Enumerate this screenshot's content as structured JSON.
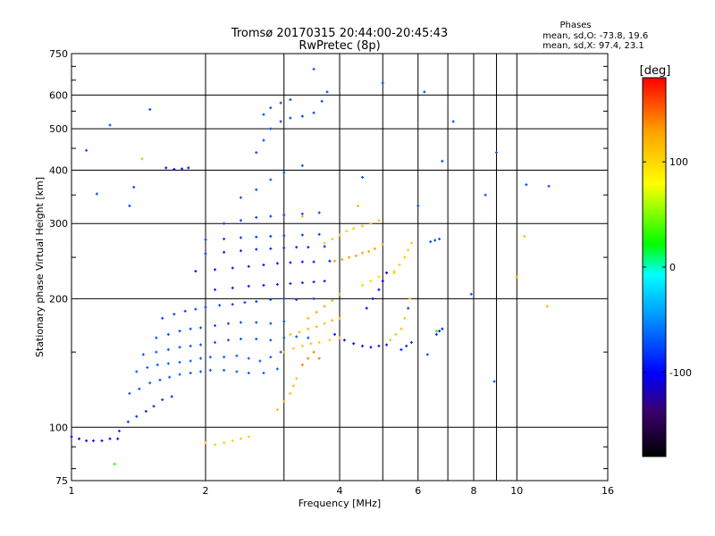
{
  "chart_data": {
    "type": "scatter",
    "title": "Tromsø 20170315 20:44:00-20:45:43",
    "subtitle": "RwPretec (8p)",
    "xlabel": "Frequency [MHz]",
    "ylabel": "Stationary phase Virtual Height [km]",
    "x_scale": "log",
    "y_scale": "log",
    "xlim": [
      1,
      16
    ],
    "ylim": [
      75,
      750
    ],
    "x_ticks": [
      1,
      2,
      4,
      6,
      8,
      10,
      16
    ],
    "x_minor_ticks": [
      3,
      5,
      7,
      9
    ],
    "y_ticks": [
      75,
      100,
      200,
      300,
      400,
      500,
      600,
      750
    ],
    "grid": true,
    "phases_box": {
      "title": "Phases",
      "line_o": "mean, sd,O: -73.8, 19.6",
      "line_x": "mean, sd,X:  97.4, 23.1"
    },
    "colorbar": {
      "label": "[deg]",
      "range": [
        -180,
        180
      ],
      "ticks": [
        100,
        0,
        -100
      ],
      "colors": [
        "#000000",
        "#3a006e",
        "#0000ff",
        "#00a0ff",
        "#00ffff",
        "#00ff00",
        "#ffff00",
        "#ffa000",
        "#ff0000"
      ]
    },
    "traces": [
      {
        "name": "",
        "phase": -105,
        "points": [
          [
            1.0,
            95
          ],
          [
            1.04,
            94
          ],
          [
            1.08,
            93
          ],
          [
            1.12,
            93
          ],
          [
            1.17,
            93
          ],
          [
            1.22,
            94
          ],
          [
            1.27,
            94
          ]
        ]
      },
      {
        "name": "",
        "phase": -85,
        "points": [
          [
            1.28,
            98
          ],
          [
            1.34,
            103
          ],
          [
            1.4,
            106
          ],
          [
            1.47,
            109
          ],
          [
            1.53,
            112
          ],
          [
            1.6,
            116
          ],
          [
            1.68,
            118
          ]
        ]
      },
      {
        "name": "",
        "phase": -70,
        "points": [
          [
            1.35,
            120
          ],
          [
            1.42,
            123
          ],
          [
            1.5,
            127
          ],
          [
            1.58,
            129
          ],
          [
            1.66,
            131
          ],
          [
            1.75,
            133
          ],
          [
            1.85,
            134
          ],
          [
            1.95,
            135
          ],
          [
            2.05,
            136
          ],
          [
            2.2,
            136
          ],
          [
            2.35,
            135
          ],
          [
            2.5,
            134
          ],
          [
            2.7,
            134
          ],
          [
            2.9,
            137
          ]
        ]
      },
      {
        "name": "",
        "phase": -68,
        "points": [
          [
            1.4,
            135
          ],
          [
            1.48,
            138
          ],
          [
            1.56,
            140
          ],
          [
            1.65,
            141
          ],
          [
            1.75,
            142
          ],
          [
            1.85,
            143
          ],
          [
            1.95,
            145
          ],
          [
            2.05,
            146
          ],
          [
            2.2,
            146
          ],
          [
            2.35,
            147
          ],
          [
            2.5,
            145
          ],
          [
            2.65,
            143
          ],
          [
            2.8,
            146
          ],
          [
            2.95,
            150
          ]
        ]
      },
      {
        "name": "",
        "phase": -72,
        "points": [
          [
            1.45,
            148
          ],
          [
            1.55,
            150
          ],
          [
            1.65,
            152
          ],
          [
            1.75,
            154
          ],
          [
            1.85,
            155
          ],
          [
            1.95,
            156
          ],
          [
            2.1,
            158
          ],
          [
            2.25,
            160
          ],
          [
            2.4,
            161
          ],
          [
            2.6,
            161
          ],
          [
            2.8,
            160
          ],
          [
            3.0,
            162
          ],
          [
            3.2,
            163
          ],
          [
            3.4,
            162
          ]
        ]
      },
      {
        "name": "",
        "phase": -75,
        "points": [
          [
            1.55,
            162
          ],
          [
            1.65,
            165
          ],
          [
            1.75,
            168
          ],
          [
            1.85,
            170
          ],
          [
            1.95,
            171
          ],
          [
            2.1,
            173
          ],
          [
            2.25,
            175
          ],
          [
            2.4,
            176
          ],
          [
            2.6,
            176
          ],
          [
            2.8,
            175
          ],
          [
            3.0,
            177
          ]
        ]
      },
      {
        "name": "",
        "phase": -80,
        "points": [
          [
            1.6,
            180
          ],
          [
            1.7,
            184
          ],
          [
            1.8,
            187
          ],
          [
            1.9,
            189
          ],
          [
            2.0,
            191
          ],
          [
            2.15,
            193
          ],
          [
            2.3,
            194
          ],
          [
            2.45,
            196
          ],
          [
            2.6,
            197
          ],
          [
            2.8,
            199
          ],
          [
            3.0,
            200
          ],
          [
            3.2,
            199
          ],
          [
            3.5,
            200
          ]
        ]
      },
      {
        "name": "",
        "phase": -90,
        "points": [
          [
            2.1,
            210
          ],
          [
            2.3,
            212
          ],
          [
            2.5,
            214
          ],
          [
            2.7,
            215
          ],
          [
            2.9,
            216
          ],
          [
            3.1,
            217
          ],
          [
            3.3,
            218
          ],
          [
            3.5,
            219
          ],
          [
            3.7,
            220
          ]
        ]
      },
      {
        "name": "",
        "phase": -92,
        "points": [
          [
            1.9,
            232
          ],
          [
            2.1,
            234
          ],
          [
            2.3,
            236
          ],
          [
            2.5,
            238
          ],
          [
            2.7,
            240
          ],
          [
            2.9,
            242
          ],
          [
            3.1,
            243
          ],
          [
            3.3,
            244
          ],
          [
            3.5,
            244
          ],
          [
            3.8,
            245
          ]
        ]
      },
      {
        "name": "",
        "phase": -88,
        "points": [
          [
            2.0,
            255
          ],
          [
            2.2,
            257
          ],
          [
            2.4,
            259
          ],
          [
            2.6,
            261
          ],
          [
            2.8,
            262
          ],
          [
            3.0,
            263
          ],
          [
            3.2,
            264
          ],
          [
            3.4,
            264
          ],
          [
            3.7,
            265
          ]
        ]
      },
      {
        "name": "",
        "phase": -82,
        "points": [
          [
            2.0,
            275
          ],
          [
            2.2,
            276
          ],
          [
            2.4,
            278
          ],
          [
            2.6,
            279
          ],
          [
            2.8,
            280
          ],
          [
            3.0,
            281
          ],
          [
            3.3,
            282
          ],
          [
            3.6,
            283
          ]
        ]
      },
      {
        "name": "",
        "phase": -78,
        "points": [
          [
            2.2,
            300
          ],
          [
            2.4,
            305
          ],
          [
            2.6,
            310
          ],
          [
            2.8,
            312
          ],
          [
            3.0,
            314
          ],
          [
            3.3,
            316
          ],
          [
            3.6,
            318
          ]
        ]
      },
      {
        "name": "",
        "phase": -72,
        "points": [
          [
            2.4,
            345
          ],
          [
            2.6,
            360
          ],
          [
            2.8,
            380
          ],
          [
            3.0,
            395
          ],
          [
            3.3,
            410
          ]
        ]
      },
      {
        "name": "",
        "phase": -78,
        "points": [
          [
            2.6,
            440
          ],
          [
            2.7,
            470
          ],
          [
            2.8,
            500
          ],
          [
            2.95,
            520
          ],
          [
            3.1,
            530
          ],
          [
            3.3,
            535
          ],
          [
            3.5,
            545
          ],
          [
            3.65,
            580
          ],
          [
            3.75,
            610
          ]
        ]
      },
      {
        "name": "",
        "phase": -75,
        "points": [
          [
            2.7,
            540
          ],
          [
            2.8,
            560
          ],
          [
            2.95,
            575
          ],
          [
            3.1,
            585
          ]
        ]
      },
      {
        "name": "",
        "phase": -98,
        "points": [
          [
            1.63,
            405
          ],
          [
            1.7,
            402
          ],
          [
            1.77,
            403
          ],
          [
            1.83,
            405
          ]
        ]
      },
      {
        "name": "",
        "phase": 105,
        "points": [
          [
            2.0,
            92
          ],
          [
            2.1,
            91
          ],
          [
            2.2,
            92
          ],
          [
            2.3,
            93
          ],
          [
            2.4,
            94
          ],
          [
            2.5,
            95
          ]
        ]
      },
      {
        "name": "",
        "phase": 115,
        "points": [
          [
            2.9,
            110
          ],
          [
            3.0,
            115
          ],
          [
            3.1,
            120
          ],
          [
            3.15,
            125
          ],
          [
            3.2,
            130
          ]
        ]
      },
      {
        "name": "",
        "phase": 108,
        "points": [
          [
            3.0,
            150
          ],
          [
            3.15,
            153
          ],
          [
            3.3,
            155
          ],
          [
            3.45,
            157
          ],
          [
            3.6,
            158
          ],
          [
            3.8,
            160
          ],
          [
            4.0,
            162
          ]
        ]
      },
      {
        "name": "",
        "phase": 118,
        "points": [
          [
            3.1,
            165
          ],
          [
            3.25,
            167
          ],
          [
            3.4,
            170
          ],
          [
            3.55,
            172
          ],
          [
            3.7,
            175
          ],
          [
            3.85,
            178
          ],
          [
            4.0,
            180
          ]
        ]
      },
      {
        "name": "",
        "phase": 125,
        "points": [
          [
            3.4,
            180
          ],
          [
            3.55,
            186
          ],
          [
            3.7,
            192
          ],
          [
            3.85,
            198
          ],
          [
            4.0,
            205
          ]
        ]
      },
      {
        "name": "",
        "phase": 130,
        "points": [
          [
            3.9,
            245
          ],
          [
            4.05,
            247
          ],
          [
            4.2,
            250
          ],
          [
            4.35,
            252
          ],
          [
            4.5,
            256
          ],
          [
            4.65,
            258
          ],
          [
            4.8,
            262
          ],
          [
            5.0,
            268
          ]
        ]
      },
      {
        "name": "",
        "phase": 110,
        "points": [
          [
            3.7,
            270
          ],
          [
            3.85,
            276
          ],
          [
            4.0,
            282
          ],
          [
            4.15,
            288
          ],
          [
            4.3,
            292
          ],
          [
            4.5,
            296
          ],
          [
            4.7,
            300
          ],
          [
            4.9,
            305
          ]
        ]
      },
      {
        "name": "",
        "phase": 100,
        "points": [
          [
            4.5,
            215
          ],
          [
            4.7,
            220
          ],
          [
            4.9,
            225
          ],
          [
            5.1,
            230
          ],
          [
            5.3,
            232
          ]
        ]
      },
      {
        "name": "",
        "phase": 112,
        "points": [
          [
            5.2,
            160
          ],
          [
            5.35,
            165
          ],
          [
            5.5,
            170
          ],
          [
            5.6,
            180
          ],
          [
            5.7,
            190
          ],
          [
            5.75,
            200
          ]
        ]
      },
      {
        "name": "",
        "phase": 108,
        "points": [
          [
            5.3,
            230
          ],
          [
            5.45,
            240
          ],
          [
            5.6,
            250
          ],
          [
            5.7,
            260
          ],
          [
            5.8,
            270
          ]
        ]
      },
      {
        "name": "",
        "phase": 140,
        "points": [
          [
            3.3,
            140
          ],
          [
            3.4,
            145
          ],
          [
            3.5,
            150
          ],
          [
            3.6,
            145
          ]
        ]
      },
      {
        "name": "",
        "phase": -95,
        "points": [
          [
            3.9,
            165
          ],
          [
            4.1,
            160
          ],
          [
            4.3,
            157
          ],
          [
            4.5,
            155
          ],
          [
            4.7,
            154
          ],
          [
            4.9,
            155
          ],
          [
            5.1,
            156
          ]
        ]
      },
      {
        "name": "",
        "phase": -100,
        "points": [
          [
            4.6,
            190
          ],
          [
            4.75,
            200
          ],
          [
            4.9,
            210
          ],
          [
            5.0,
            220
          ],
          [
            5.1,
            230
          ]
        ]
      },
      {
        "name": "",
        "phase": -90,
        "points": [
          [
            5.5,
            152
          ],
          [
            5.65,
            155
          ],
          [
            5.8,
            158
          ]
        ]
      },
      {
        "name": "",
        "phase": -90,
        "points": [
          [
            6.6,
            165
          ],
          [
            6.7,
            168
          ],
          [
            6.8,
            170
          ]
        ]
      },
      {
        "name": "",
        "phase": -75,
        "points": [
          [
            6.4,
            272
          ],
          [
            6.55,
            274
          ],
          [
            6.7,
            276
          ]
        ]
      },
      {
        "name": "",
        "phase": -75,
        "points": [
          [
            1.08,
            445
          ],
          [
            1.14,
            352
          ],
          [
            1.22,
            510
          ],
          [
            1.35,
            330
          ],
          [
            1.5,
            555
          ],
          [
            1.38,
            365
          ],
          [
            3.5,
            690
          ],
          [
            5.0,
            640
          ],
          [
            6.2,
            610
          ],
          [
            7.2,
            520
          ],
          [
            8.5,
            350
          ],
          [
            9.0,
            440
          ],
          [
            10.5,
            370
          ],
          [
            11.8,
            367
          ],
          [
            4.5,
            385
          ],
          [
            6.0,
            330
          ],
          [
            6.8,
            420
          ],
          [
            7.9,
            205
          ],
          [
            8.9,
            128
          ],
          [
            6.3,
            148
          ],
          [
            5.7,
            190
          ]
        ]
      },
      {
        "name": "",
        "phase": 120,
        "points": [
          [
            10.4,
            280
          ],
          [
            1.44,
            425
          ],
          [
            11.7,
            192
          ],
          [
            10.0,
            225
          ],
          [
            3.3,
            312
          ],
          [
            4.4,
            330
          ]
        ]
      },
      {
        "name": "",
        "phase": 30,
        "points": [
          [
            6.6,
            168
          ],
          [
            1.25,
            82
          ]
        ]
      }
    ]
  }
}
